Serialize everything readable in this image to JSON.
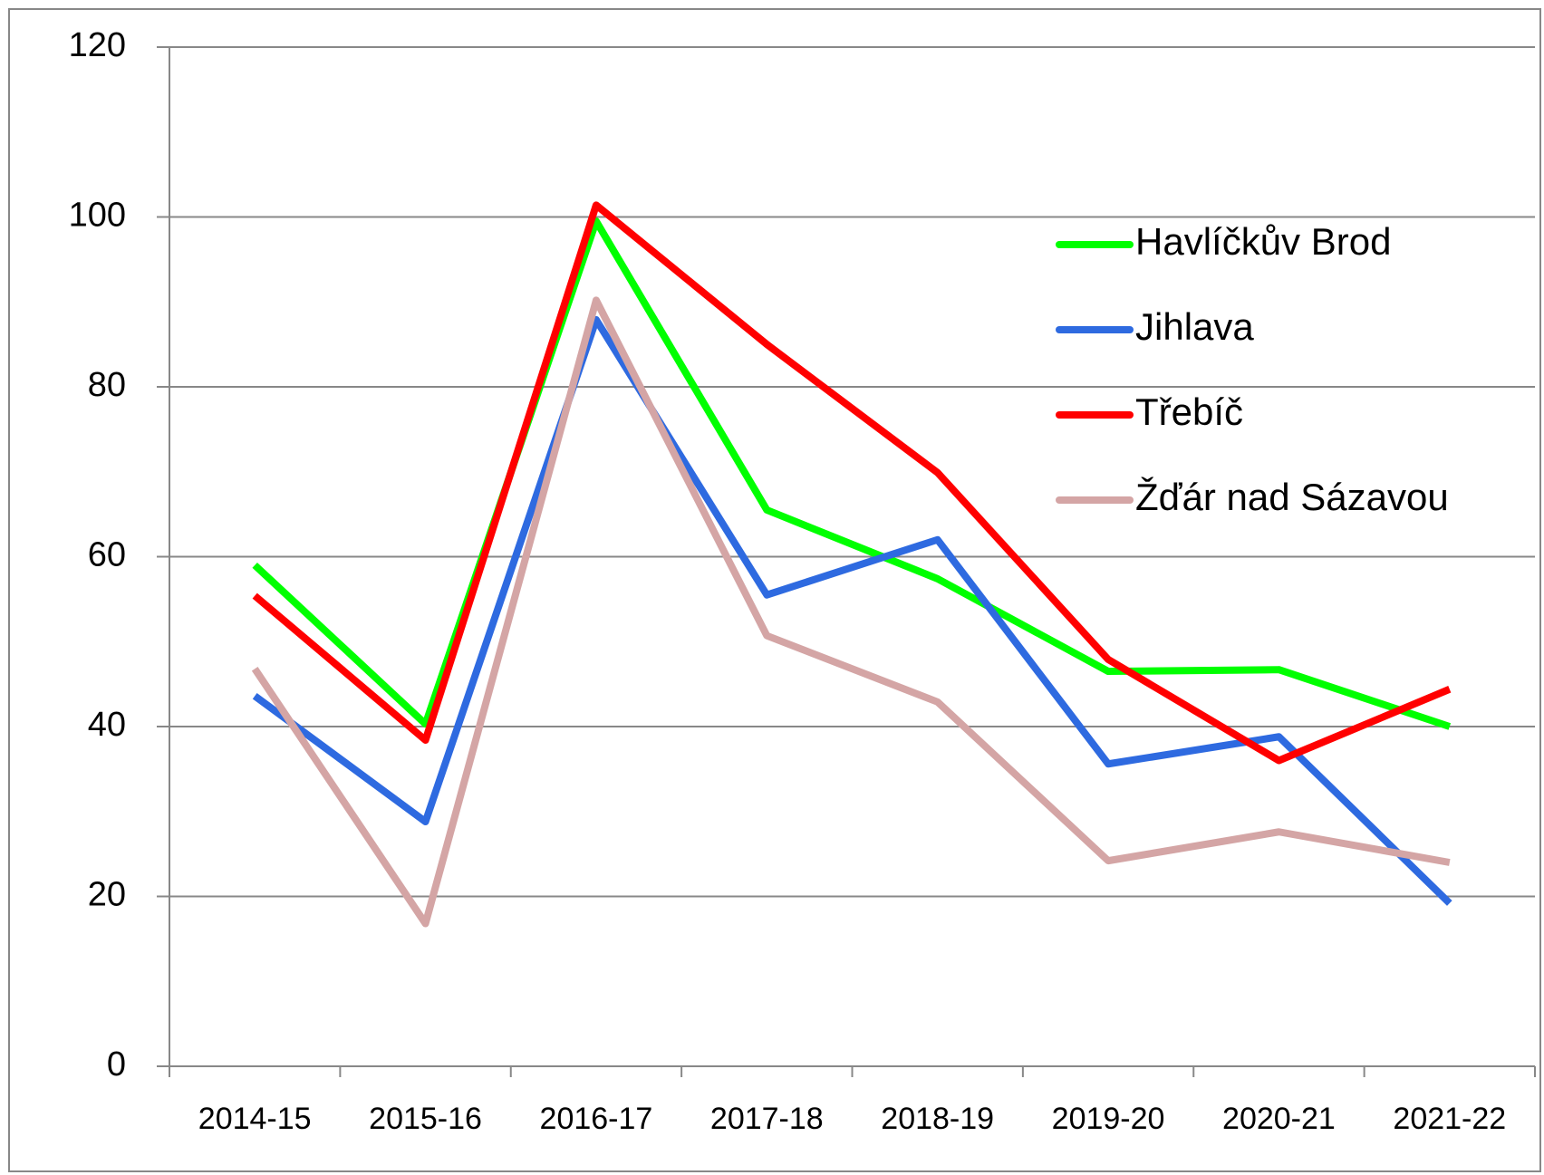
{
  "chart_data": {
    "type": "line",
    "categories": [
      "2014-15",
      "2015-16",
      "2016-17",
      "2017-18",
      "2018-19",
      "2019-20",
      "2020-21",
      "2021-22"
    ],
    "series": [
      {
        "name": "Havlíčkův Brod",
        "color": "#00ff00",
        "values": [
          59,
          40.3,
          99.5,
          65.5,
          57.4,
          46.5,
          46.7,
          40
        ]
      },
      {
        "name": "Jihlava",
        "color": "#2e6ae0",
        "values": [
          43.6,
          28.8,
          87.9,
          55.5,
          62,
          35.6,
          38.8,
          19.2
        ]
      },
      {
        "name": "Třebíč",
        "color": "#ff0000",
        "values": [
          55.4,
          38.4,
          101.4,
          85,
          69.9,
          47.9,
          36,
          44.4
        ]
      },
      {
        "name": "Žďár nad Sázavou",
        "color": "#d4a5a5",
        "values": [
          46.8,
          16.8,
          90.2,
          50.7,
          42.9,
          24.2,
          27.6,
          24
        ]
      }
    ],
    "ylim": [
      0,
      120
    ],
    "yticks": [
      0,
      20,
      40,
      60,
      80,
      100,
      120
    ],
    "grid": true,
    "legend": "right"
  }
}
